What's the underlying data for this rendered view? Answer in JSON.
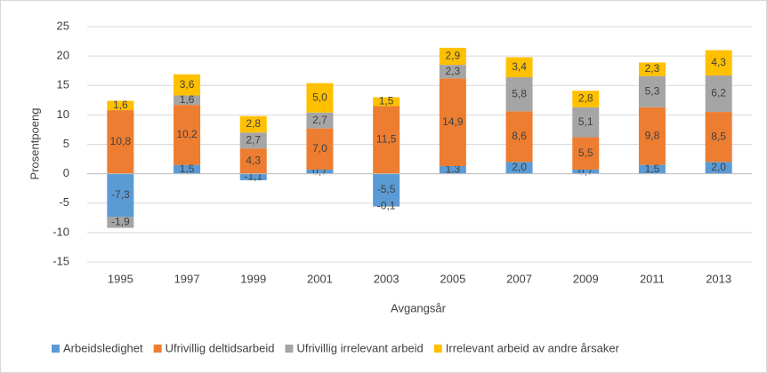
{
  "chart_data": {
    "type": "stacked_bar",
    "x_label": "Avgangsår",
    "y_label": "Prosentpoeng",
    "categories": [
      "1995",
      "1997",
      "1999",
      "2001",
      "2003",
      "2005",
      "2007",
      "2009",
      "2011",
      "2013"
    ],
    "series": [
      {
        "name": "Arbeidsledighet",
        "color": "#5b9bd5",
        "values": [
          -7.3,
          1.5,
          -1.1,
          0.7,
          -5.5,
          1.3,
          2.0,
          0.7,
          1.5,
          2.0
        ],
        "value_labels": [
          "-7,3",
          "1,5",
          "-1,1",
          "0,7",
          "-5,5",
          "1,3",
          "2,0",
          "0,7",
          "1,5",
          "2,0"
        ]
      },
      {
        "name": "Ufrivillig deltidsarbeid",
        "color": "#ed7d31",
        "values": [
          10.8,
          10.2,
          4.3,
          7.0,
          11.5,
          14.9,
          8.6,
          5.5,
          9.8,
          8.5
        ],
        "value_labels": [
          "10,8",
          "10,2",
          "4,3",
          "7,0",
          "11,5",
          "14,9",
          "8,6",
          "5,5",
          "9,8",
          "8,5"
        ]
      },
      {
        "name": "Ufrivillig irrelevant arbeid",
        "color": "#a5a5a5",
        "values": [
          -1.9,
          1.6,
          2.7,
          2.7,
          -0.1,
          2.3,
          5.8,
          5.1,
          5.3,
          6.2
        ],
        "value_labels": [
          "-1,9",
          "1,6",
          "2,7",
          "2,7",
          "-0,1",
          "2,3",
          "5,8",
          "5,1",
          "5,3",
          "6,2"
        ]
      },
      {
        "name": "Irrelevant arbeid av andre årsaker",
        "color": "#ffc000",
        "values": [
          1.6,
          3.6,
          2.8,
          5.0,
          1.5,
          2.9,
          3.4,
          2.8,
          2.3,
          4.3
        ],
        "value_labels": [
          "1,6",
          "3,6",
          "2,8",
          "5,0",
          "1,5",
          "2,9",
          "3,4",
          "2,8",
          "2,3",
          "4,3"
        ]
      }
    ],
    "ylim": [
      -15,
      25
    ],
    "yticks": [
      -15,
      -10,
      -5,
      0,
      5,
      10,
      15,
      20,
      25
    ],
    "grid": true,
    "legend": "bottom"
  }
}
